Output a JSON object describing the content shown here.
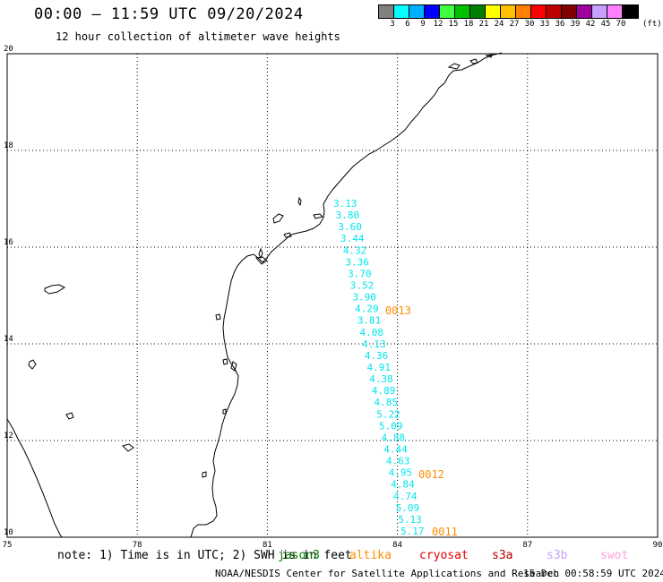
{
  "header": {
    "title": "00:00 — 11:59 UTC 09/20/2024",
    "subtitle": "12 hour collection of altimeter wave heights"
  },
  "legend": {
    "unit": "(ft)",
    "bins": [
      {
        "label": "3",
        "color": "#808080"
      },
      {
        "label": "6",
        "color": "#00ffff"
      },
      {
        "label": "9",
        "color": "#00b0ff"
      },
      {
        "label": "12",
        "color": "#0000ff"
      },
      {
        "label": "15",
        "color": "#40ff40"
      },
      {
        "label": "18",
        "color": "#00c000"
      },
      {
        "label": "21",
        "color": "#008000"
      },
      {
        "label": "24",
        "color": "#ffff00"
      },
      {
        "label": "27",
        "color": "#ffc000"
      },
      {
        "label": "30",
        "color": "#ff8000"
      },
      {
        "label": "33",
        "color": "#ff0000"
      },
      {
        "label": "36",
        "color": "#c00000"
      },
      {
        "label": "39",
        "color": "#800000"
      },
      {
        "label": "42",
        "color": "#a000a0"
      },
      {
        "label": "45",
        "color": "#c8a0ff"
      },
      {
        "label": "70",
        "color": "#ff80ff"
      },
      {
        "label": "",
        "color": "#000000"
      }
    ]
  },
  "map": {
    "lon_ticks": [
      "75",
      "78",
      "81",
      "84",
      "87",
      "90"
    ],
    "lat_ticks": [
      "10",
      "12",
      "14",
      "16",
      "18",
      "20"
    ],
    "lon_range": [
      75,
      90
    ],
    "lat_range": [
      10,
      20
    ],
    "track_color": "#00e5ee",
    "time_color": "#ff8c00",
    "wave_heights": [
      "3.13",
      "3.80",
      "3.60",
      "3.44",
      "4.32",
      "3.36",
      "3.70",
      "3.52",
      "3.90",
      "4.29",
      "3.81",
      "4.08",
      "4.13",
      "4.36",
      "4.91",
      "4.38",
      "4.89",
      "4.85",
      "5.22",
      "5.09",
      "4.88",
      "4.44",
      "4.63",
      "4.95",
      "4.84",
      "4.74",
      "5.09",
      "5.13",
      "5.17"
    ],
    "time_labels": [
      "0013",
      "0012",
      "0011"
    ]
  },
  "footer": {
    "note": "note: 1) Time is in UTC; 2) SWH is in feet",
    "satellites": [
      {
        "name": "jason3",
        "color": "#008000"
      },
      {
        "name": "altika",
        "color": "#ff8c00"
      },
      {
        "name": "cryosat",
        "color": "#e00000"
      },
      {
        "name": "s3a",
        "color": "#b00000"
      },
      {
        "name": "s3b",
        "color": "#c8a0ff"
      },
      {
        "name": "swot",
        "color": "#ffa0e0"
      }
    ],
    "credit": "NOAA/NESDIS Center for Satellite Applications and Research",
    "timestamp": "15 Dec 00:58:59 UTC 2024"
  }
}
